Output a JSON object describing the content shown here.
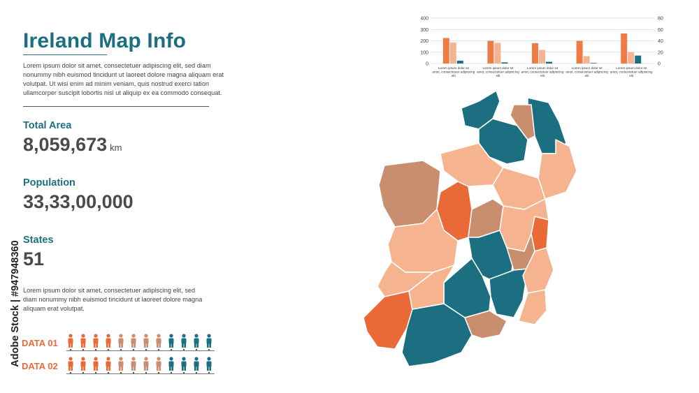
{
  "header": {
    "title": "Ireland Map Info",
    "intro": "Lorem ipsum dolor sit amet, consectetuer adipiscing elit, sed diam nonummy nibh euismod tincidunt ut laoreet dolore magna aliquam erat volutpat. Ut wisi enim ad minim veniam, quis nostrud exerci tation ullamcorper suscipit lobortis nisl ut aliquip ex ea commodo consequat."
  },
  "stats": {
    "area_label": "Total Area",
    "area_value": "8,059,673",
    "area_unit": "km",
    "population_label": "Population",
    "population_value": "33,33,00,000",
    "states_label": "States",
    "states_value": "51"
  },
  "note": "Lorem ipsum dolor sit amet, consectetuer adipiscing elit, sed diam nonummy nibh euismod tincidunt ut laoreet dolore magna aliquam erat volutpat.",
  "data_rows": [
    {
      "label": "DATA 01",
      "colors": [
        "#e96a37",
        "#e96a37",
        "#e96a37",
        "#e96a37",
        "#c98e6e",
        "#c98e6e",
        "#c98e6e",
        "#c98e6e",
        "#1b6f80",
        "#1b6f80",
        "#1b6f80",
        "#1b6f80"
      ]
    },
    {
      "label": "DATA 02",
      "colors": [
        "#e96a37",
        "#e96a37",
        "#e96a37",
        "#e96a37",
        "#c98e6e",
        "#c98e6e",
        "#c98e6e",
        "#c98e6e",
        "#1b6f80",
        "#1b6f80",
        "#1b6f80",
        "#1b6f80"
      ]
    }
  ],
  "watermark": "Adobe Stock | #947948360",
  "colors": {
    "teal": "#1b6f80",
    "orange": "#e96a37",
    "light_orange": "#f3a57e",
    "tan": "#c98e6e",
    "peach": "#f5b48f"
  },
  "map": {
    "region_fills": [
      "#1b6f80",
      "#1b6f80",
      "#1b6f80",
      "#c98e6e",
      "#f5b48f",
      "#c98e6e",
      "#e96a37",
      "#f5b48f",
      "#f5b48f",
      "#c98e6e",
      "#f5b48f",
      "#e96a37",
      "#1b6f80",
      "#f5b48f",
      "#c98e6e",
      "#1b6f80",
      "#f5b48f",
      "#f5b48f",
      "#e96a37",
      "#1b6f80",
      "#c98e6e",
      "#1b6f80",
      "#f5b48f",
      "#f5b48f"
    ]
  },
  "chart_data": {
    "type": "bar",
    "categories": [
      "Lorem ipsum dolor sit amet, consectetuer adipiscing elit",
      "Lorem ipsum dolor sit amet, consectetuer adipiscing elit",
      "Lorem ipsum dolor sit amet, consectetuer adipiscing elit",
      "Lorem ipsum dolor sit amet, consectetuer adipiscing elit",
      "Lorem ipsum dolor sit amet, consectetuer adipiscing elit"
    ],
    "series": [
      {
        "values": [
          225,
          200,
          180,
          200,
          265
        ],
        "color": "#f07b45",
        "axis": "left"
      },
      {
        "values": [
          185,
          182,
          120,
          65,
          100
        ],
        "color": "#f6b393",
        "axis": "left"
      },
      {
        "values": [
          5,
          2,
          3,
          1,
          14
        ],
        "color": "#1b6f80",
        "axis": "right"
      }
    ],
    "left_axis": {
      "ticks": [
        0,
        100,
        200,
        300,
        400
      ],
      "ylim": [
        0,
        400
      ]
    },
    "right_axis": {
      "ticks": [
        0,
        20,
        40,
        60,
        80
      ],
      "ylim": [
        0,
        80
      ]
    },
    "grid": true
  }
}
